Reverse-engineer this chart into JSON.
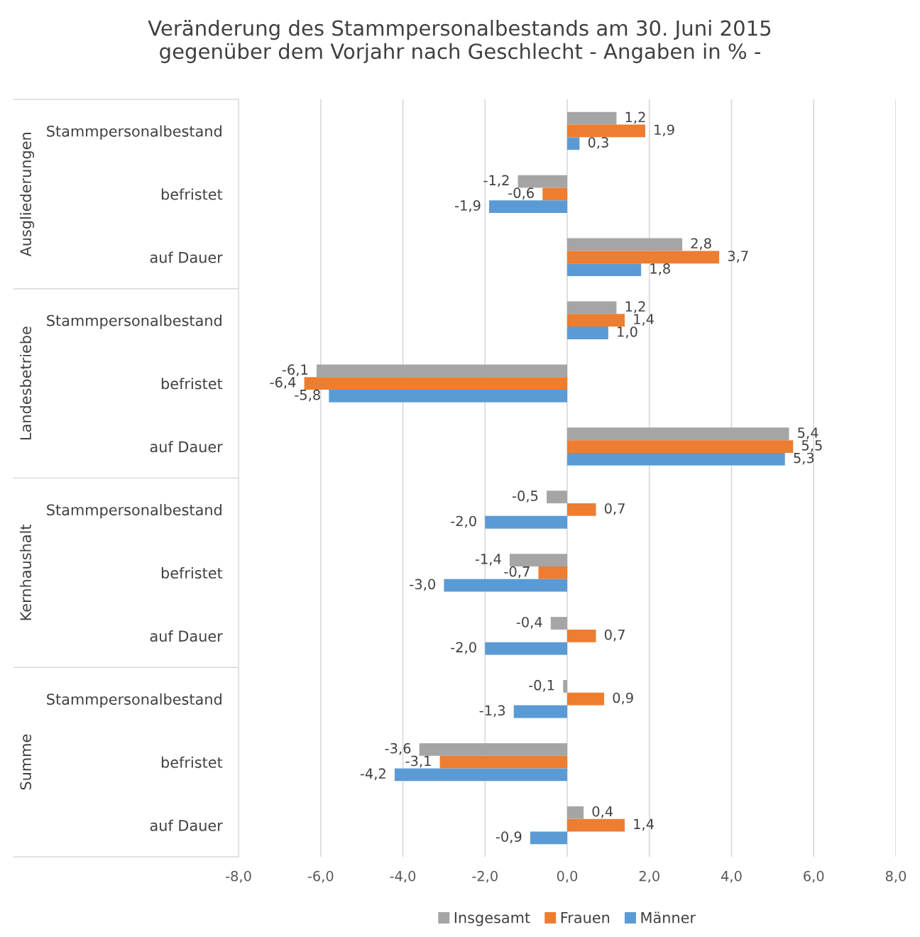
{
  "chart_data": {
    "type": "bar",
    "orientation": "horizontal",
    "title": "Veränderung des Stammpersonalbestands am 30. Juni 2015\ngegenüber dem Vorjahr nach Geschlecht - Angaben in % -",
    "categories": [
      "Stammpersonalbestand",
      "befristet",
      "auf Dauer",
      "Stammpersonalbestand",
      "befristet",
      "auf Dauer",
      "Stammpersonalbestand",
      "befristet",
      "auf Dauer",
      "Stammpersonalbestand",
      "befristet",
      "auf Dauer"
    ],
    "annotations": [
      "Ausgliederungen",
      "Landesbetriebe",
      "Kernhaushalt",
      "Summe"
    ],
    "series": [
      {
        "name": "Insgesamt",
        "color": "#a5a5a5",
        "values": [
          1.2,
          -1.2,
          2.8,
          1.2,
          -6.1,
          5.4,
          -0.5,
          -1.4,
          -0.4,
          -0.1,
          -3.6,
          0.4
        ],
        "value_labels": [
          "1,2",
          "-1,2",
          "2,8",
          "1,2",
          "-6,1",
          "5,4",
          "-0,5",
          "-1,4",
          "-0,4",
          "-0,1",
          "-3,6",
          "0,4"
        ]
      },
      {
        "name": "Frauen",
        "color": "#ed7d31",
        "values": [
          1.9,
          -0.6,
          3.7,
          1.4,
          -6.4,
          5.5,
          0.7,
          -0.7,
          0.7,
          0.9,
          -3.1,
          1.4
        ],
        "value_labels": [
          "1,9",
          "-0,6",
          "3,7",
          "1,4",
          "-6,4",
          "5,5",
          "0,7",
          "-0,7",
          "0,7",
          "0,9",
          "-3,1",
          "1,4"
        ]
      },
      {
        "name": "Männer",
        "color": "#5b9bd5",
        "values": [
          0.3,
          -1.9,
          1.8,
          1.0,
          -5.8,
          5.3,
          -2.0,
          -3.0,
          -2.0,
          -1.3,
          -4.2,
          -0.9
        ],
        "value_labels": [
          "0,3",
          "-1,9",
          "1,8",
          "1,0",
          "-5,8",
          "5,3",
          "-2,0",
          "-3,0",
          "-2,0",
          "-1,3",
          "-4,2",
          "-0,9"
        ]
      }
    ],
    "xlim": [
      -8,
      8
    ],
    "xticks": [
      {
        "value": -8,
        "label": "-8,0"
      },
      {
        "value": -6,
        "label": "-6,0"
      },
      {
        "value": -4,
        "label": "-4,0"
      },
      {
        "value": -2,
        "label": "-2,0"
      },
      {
        "value": 0,
        "label": "0,0"
      },
      {
        "value": 2,
        "label": "2,0"
      },
      {
        "value": 4,
        "label": "4,0"
      },
      {
        "value": 6,
        "label": "6,0"
      },
      {
        "value": 8,
        "label": "8,0"
      }
    ],
    "grid": "x",
    "legend": "bottom"
  }
}
